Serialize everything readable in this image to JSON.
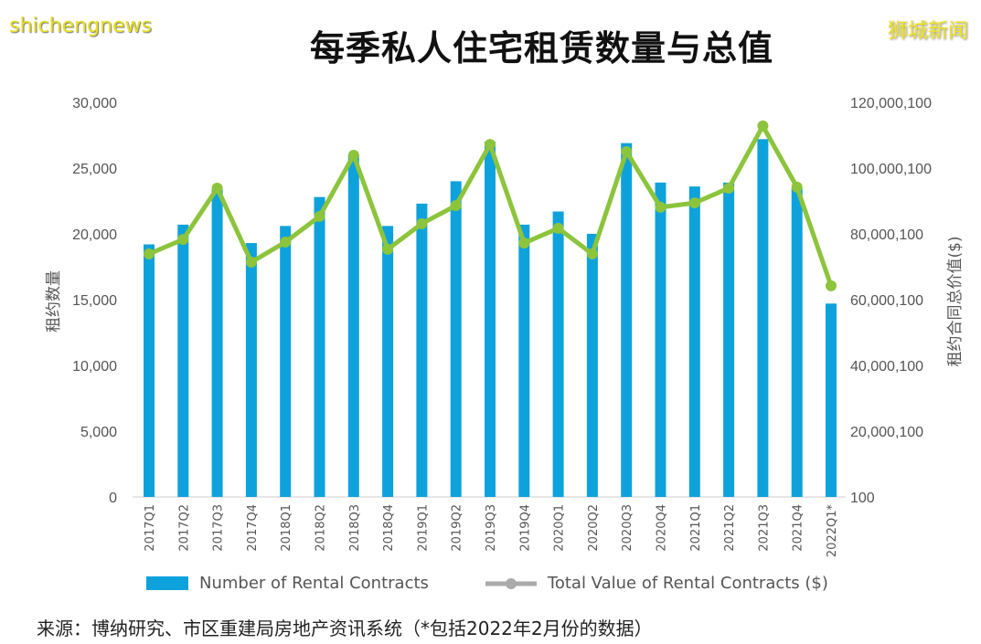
{
  "chart_data": {
    "type": "bar+line",
    "title": "每季私人住宅租赁数量与总值",
    "categories": [
      "2017Q1",
      "2017Q2",
      "2017Q3",
      "2017Q4",
      "2018Q1",
      "2018Q2",
      "2018Q3",
      "2018Q4",
      "2019Q1",
      "2019Q2",
      "2019Q3",
      "2019Q4",
      "2020Q1",
      "2020Q2",
      "2020Q3",
      "2020Q4",
      "2021Q1",
      "2021Q2",
      "2021Q3",
      "2021Q4",
      "2022Q1*"
    ],
    "series": [
      {
        "name": "Number of Rental Contracts",
        "type": "bar",
        "axis": "left",
        "color": "#0ea2dc",
        "values": [
          19200,
          20700,
          23400,
          19300,
          20600,
          22800,
          26000,
          20600,
          22300,
          24000,
          27000,
          20700,
          21700,
          20000,
          26900,
          23900,
          23600,
          23900,
          27200,
          23500,
          14700
        ]
      },
      {
        "name": "Total Value of Rental Contracts ($)",
        "type": "line",
        "axis": "right",
        "color": "#8cc43c",
        "values": [
          73900000,
          78300000,
          93900000,
          71400000,
          77500000,
          85300000,
          103900000,
          75300000,
          83100000,
          88600000,
          107200000,
          77200000,
          81700000,
          73900000,
          105000000,
          88100000,
          89400000,
          93900000,
          112800000,
          94200000,
          64200000
        ]
      }
    ],
    "ylabel": "租约数量",
    "y2label": "租约合同总价值($)",
    "ylim": [
      0,
      30000
    ],
    "y2lim": [
      100,
      120000100
    ],
    "yticks": [
      "0",
      "5,000",
      "10,000",
      "15,000",
      "20,000",
      "25,000",
      "30,000"
    ],
    "y2ticks": [
      "100",
      "20,000,100",
      "40,000,100",
      "60,000,100",
      "80,000,100",
      "100,000,100",
      "120,000,100"
    ],
    "grid": false,
    "legend": "bottom"
  },
  "source": "来源：博纳研究、市区重建局房地产资讯系统（*包括2022年2月份的数据）",
  "watermark_top": "狮城新闻",
  "watermark_bottom": "shichengnews"
}
